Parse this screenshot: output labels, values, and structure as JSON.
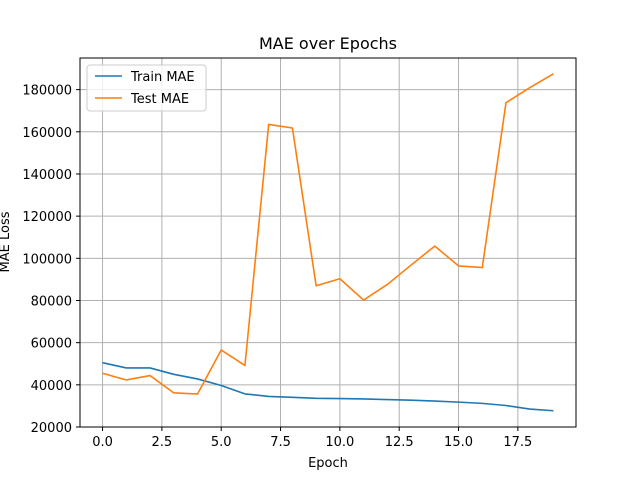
{
  "chart_data": {
    "type": "line",
    "title": "MAE over Epochs",
    "xlabel": "Epoch",
    "ylabel": "MAE Loss",
    "x": [
      0,
      1,
      2,
      3,
      4,
      5,
      6,
      7,
      8,
      9,
      10,
      11,
      12,
      13,
      14,
      15,
      16,
      17,
      18,
      19
    ],
    "xlim": [
      -0.95,
      19.95
    ],
    "ylim": [
      20000,
      195000
    ],
    "xticks": [
      0,
      2.5,
      5,
      7.5,
      10,
      12.5,
      15,
      17.5
    ],
    "xtick_labels": [
      "0.0",
      "2.5",
      "5.0",
      "7.5",
      "10.0",
      "12.5",
      "15.0",
      "17.5"
    ],
    "yticks": [
      20000,
      40000,
      60000,
      80000,
      100000,
      120000,
      140000,
      160000,
      180000
    ],
    "ytick_labels": [
      "20000",
      "40000",
      "60000",
      "80000",
      "100000",
      "120000",
      "140000",
      "160000",
      "180000"
    ],
    "grid": true,
    "legend_position": "top-left",
    "series": [
      {
        "name": "Train MAE",
        "color": "#1f77b4",
        "values": [
          50500,
          48000,
          48000,
          45000,
          42800,
          39700,
          35700,
          34500,
          34100,
          33600,
          33500,
          33300,
          33000,
          32700,
          32300,
          31800,
          31200,
          30200,
          28500,
          27700
        ]
      },
      {
        "name": "Test MAE",
        "color": "#ff7f0e",
        "values": [
          45500,
          42300,
          44400,
          36200,
          35600,
          56500,
          49200,
          163500,
          161800,
          87000,
          90300,
          80200,
          87600,
          96800,
          105800,
          96400,
          95600,
          173800,
          180900,
          187500
        ]
      }
    ]
  }
}
